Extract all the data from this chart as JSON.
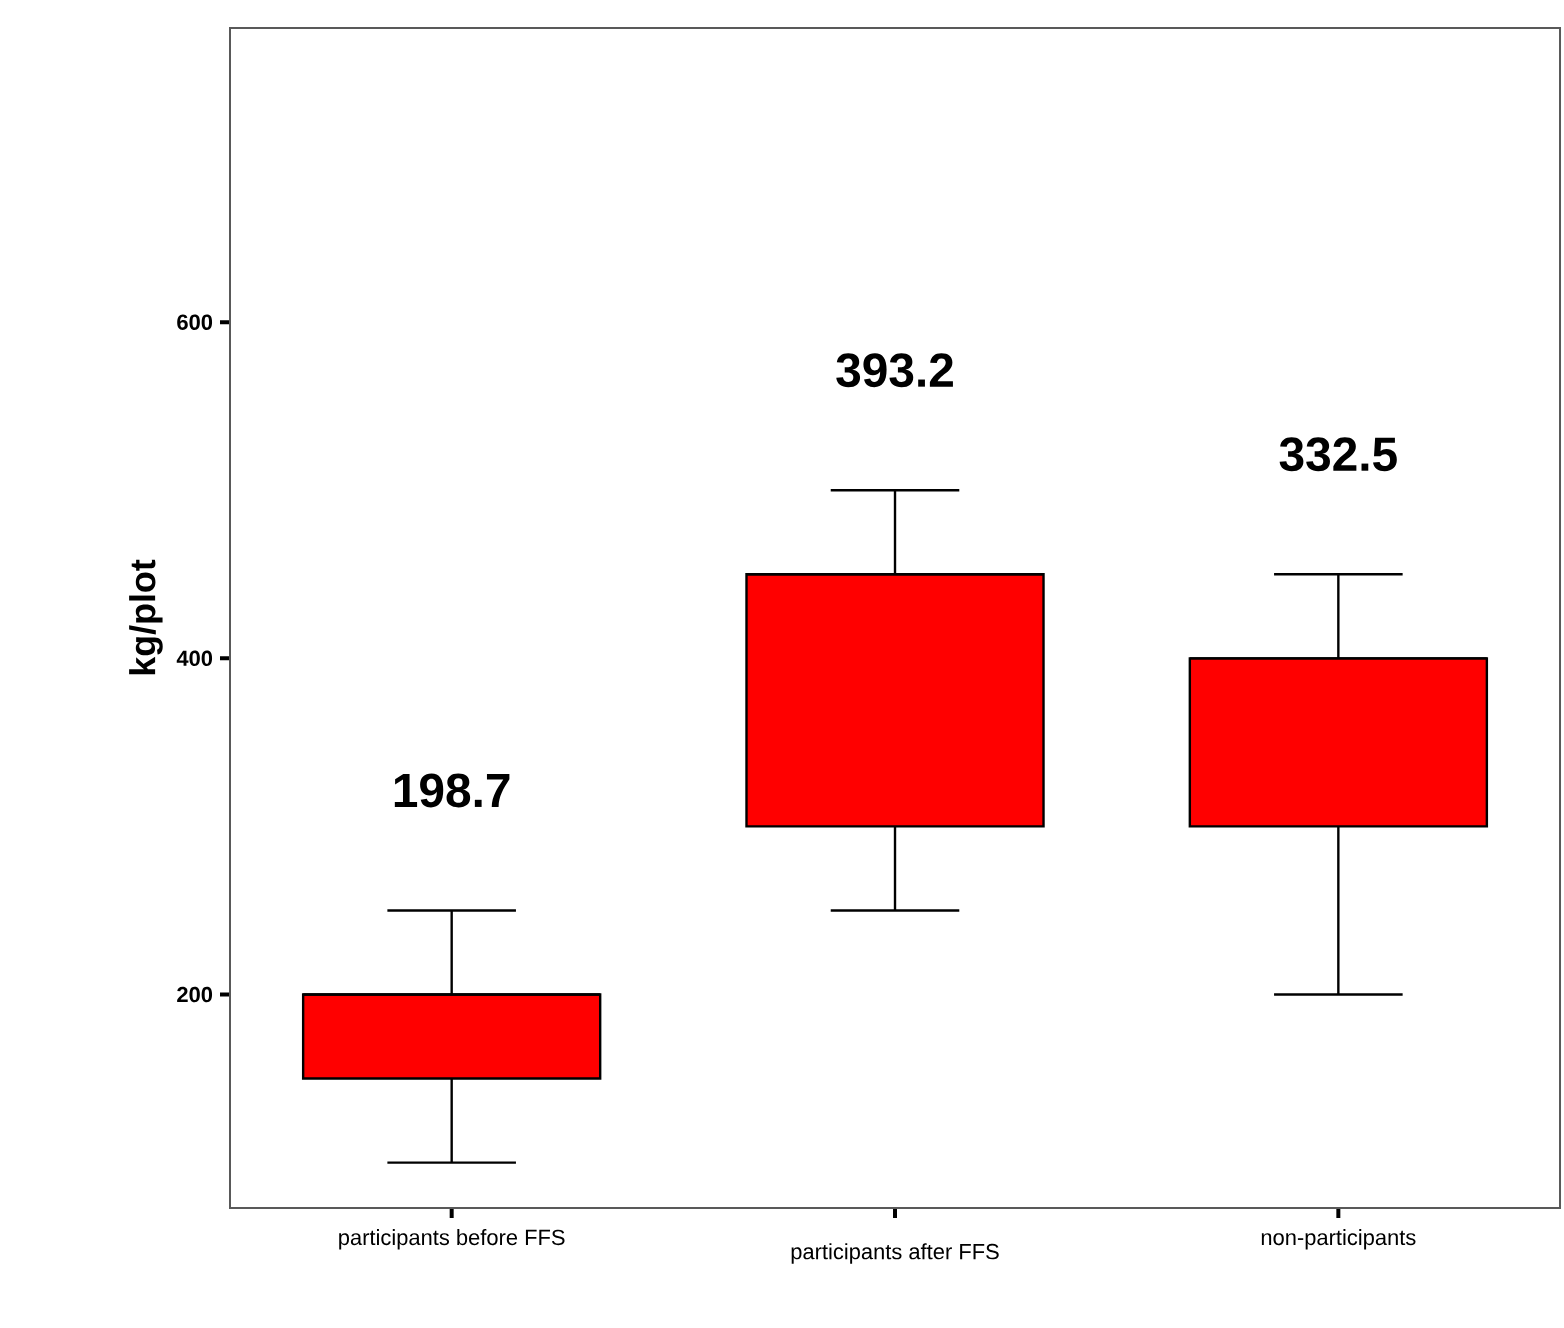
{
  "chart_data": {
    "type": "box",
    "ylabel": "kg/plot",
    "categories": [
      "participants before FFS",
      "participants after FFS",
      "non-participants"
    ],
    "color": "#ff0000",
    "boxes": [
      {
        "low": 100,
        "q1": 150,
        "median": 200,
        "q3": 200,
        "high": 250
      },
      {
        "low": 250,
        "q1": 300,
        "median": 450,
        "q3": 450,
        "high": 500
      },
      {
        "low": 200,
        "q1": 300,
        "median": 400,
        "q3": 400,
        "high": 450
      }
    ],
    "ylim": [
      73,
      775
    ],
    "yticks": [
      200,
      400,
      600
    ],
    "annotations": [
      "198.7",
      "393.2",
      "332.5"
    ]
  }
}
